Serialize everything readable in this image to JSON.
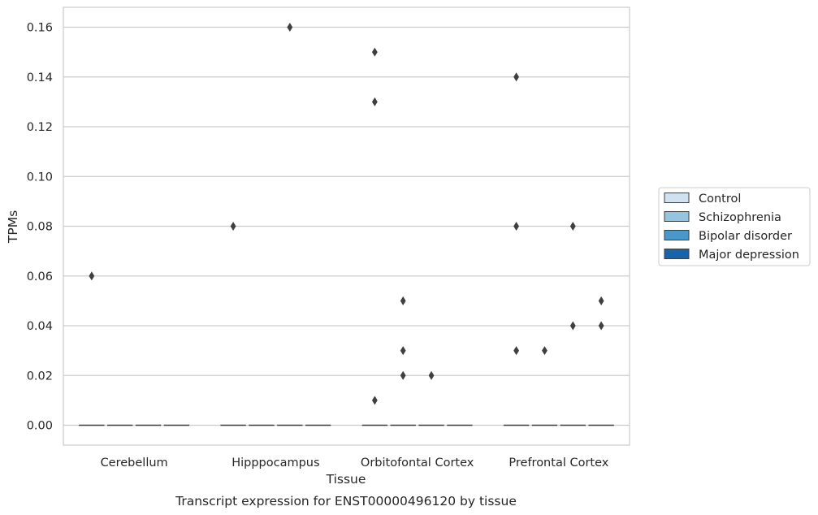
{
  "caption": "Transcript expression for ENST00000496120 by tissue",
  "chart_data": {
    "type": "box",
    "title": "",
    "xlabel": "Tissue",
    "ylabel": "TPMs",
    "categories": [
      "Cerebellum",
      "Hipppocampus",
      "Orbitofontal Cortex",
      "Prefrontal Cortex"
    ],
    "ylim": [
      -0.008,
      0.168
    ],
    "yticks": [
      0.0,
      0.02,
      0.04,
      0.06,
      0.08,
      0.1,
      0.12,
      0.14,
      0.16
    ],
    "ytick_labels": [
      "0.00",
      "0.02",
      "0.04",
      "0.06",
      "0.08",
      "0.10",
      "0.12",
      "0.14",
      "0.16"
    ],
    "grid": true,
    "legend_position": "right",
    "series": [
      {
        "name": "Control",
        "color": "#d0e1f2",
        "medians": [
          0,
          0,
          0,
          0
        ],
        "outliers": [
          [
            0.06
          ],
          [
            0.08
          ],
          [
            0.15,
            0.13,
            0.01
          ],
          [
            0.14,
            0.08,
            0.03
          ]
        ]
      },
      {
        "name": "Schizophrenia",
        "color": "#94c4df",
        "medians": [
          0,
          0,
          0,
          0
        ],
        "outliers": [
          [],
          [],
          [
            0.05,
            0.03,
            0.02
          ],
          [
            0.03
          ]
        ]
      },
      {
        "name": "Bipolar disorder",
        "color": "#4a98c9",
        "medians": [
          0,
          0,
          0,
          0
        ],
        "outliers": [
          [],
          [
            0.16
          ],
          [
            0.02
          ],
          [
            0.08,
            0.04
          ]
        ]
      },
      {
        "name": "Major depression",
        "color": "#1764ab",
        "medians": [
          0,
          0,
          0,
          0
        ],
        "outliers": [
          [],
          [],
          [],
          [
            0.05,
            0.04
          ]
        ]
      }
    ]
  }
}
